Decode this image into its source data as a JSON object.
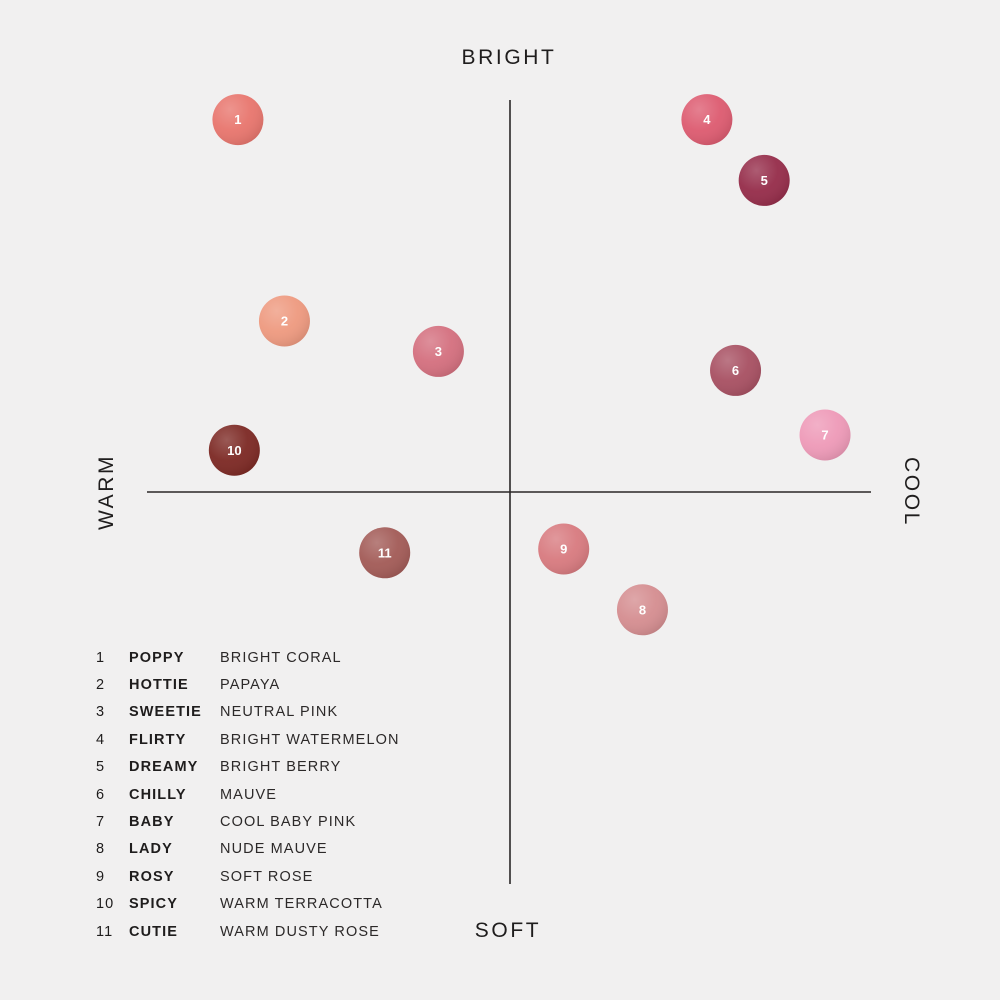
{
  "chart_data": {
    "type": "scatter",
    "axes": {
      "top": "BRIGHT",
      "bottom": "SOFT",
      "left": "WARM",
      "right": "COOL"
    },
    "xlim": [
      -10,
      10
    ],
    "ylim": [
      -10,
      10
    ],
    "points": [
      {
        "id": "1",
        "x": -7.6,
        "y": 9.8,
        "color": "#e8766e"
      },
      {
        "id": "2",
        "x": -6.3,
        "y": 4.5,
        "color": "#ee9a80"
      },
      {
        "id": "3",
        "x": -2.0,
        "y": 3.7,
        "color": "#d4707f"
      },
      {
        "id": "4",
        "x": 5.5,
        "y": 9.8,
        "color": "#dd5c71"
      },
      {
        "id": "5",
        "x": 7.1,
        "y": 8.2,
        "color": "#962e4b"
      },
      {
        "id": "6",
        "x": 6.3,
        "y": 3.2,
        "color": "#a85163"
      },
      {
        "id": "7",
        "x": 8.8,
        "y": 1.5,
        "color": "#ee9ab8"
      },
      {
        "id": "8",
        "x": 3.7,
        "y": -3.1,
        "color": "#d58e91"
      },
      {
        "id": "9",
        "x": 1.5,
        "y": -1.5,
        "color": "#d87b80"
      },
      {
        "id": "10",
        "x": -7.7,
        "y": 1.1,
        "color": "#7d2a25"
      },
      {
        "id": "11",
        "x": -3.5,
        "y": -1.6,
        "color": "#a35c58"
      }
    ]
  },
  "legend": [
    {
      "num": "1",
      "name": "POPPY",
      "desc": "BRIGHT CORAL"
    },
    {
      "num": "2",
      "name": "HOTTIE",
      "desc": "PAPAYA"
    },
    {
      "num": "3",
      "name": "SWEETIE",
      "desc": "NEUTRAL PINK"
    },
    {
      "num": "4",
      "name": "FLIRTY",
      "desc": "BRIGHT WATERMELON"
    },
    {
      "num": "5",
      "name": "DREAMY",
      "desc": "BRIGHT BERRY"
    },
    {
      "num": "6",
      "name": "CHILLY",
      "desc": "MAUVE"
    },
    {
      "num": "7",
      "name": "BABY",
      "desc": "COOL BABY PINK"
    },
    {
      "num": "8",
      "name": "LADY",
      "desc": "NUDE MAUVE"
    },
    {
      "num": "9",
      "name": "ROSY",
      "desc": "SOFT ROSE"
    },
    {
      "num": "10",
      "name": "SPICY",
      "desc": "WARM TERRACOTTA"
    },
    {
      "num": "11",
      "name": "CUTIE",
      "desc": "WARM DUSTY ROSE"
    }
  ]
}
